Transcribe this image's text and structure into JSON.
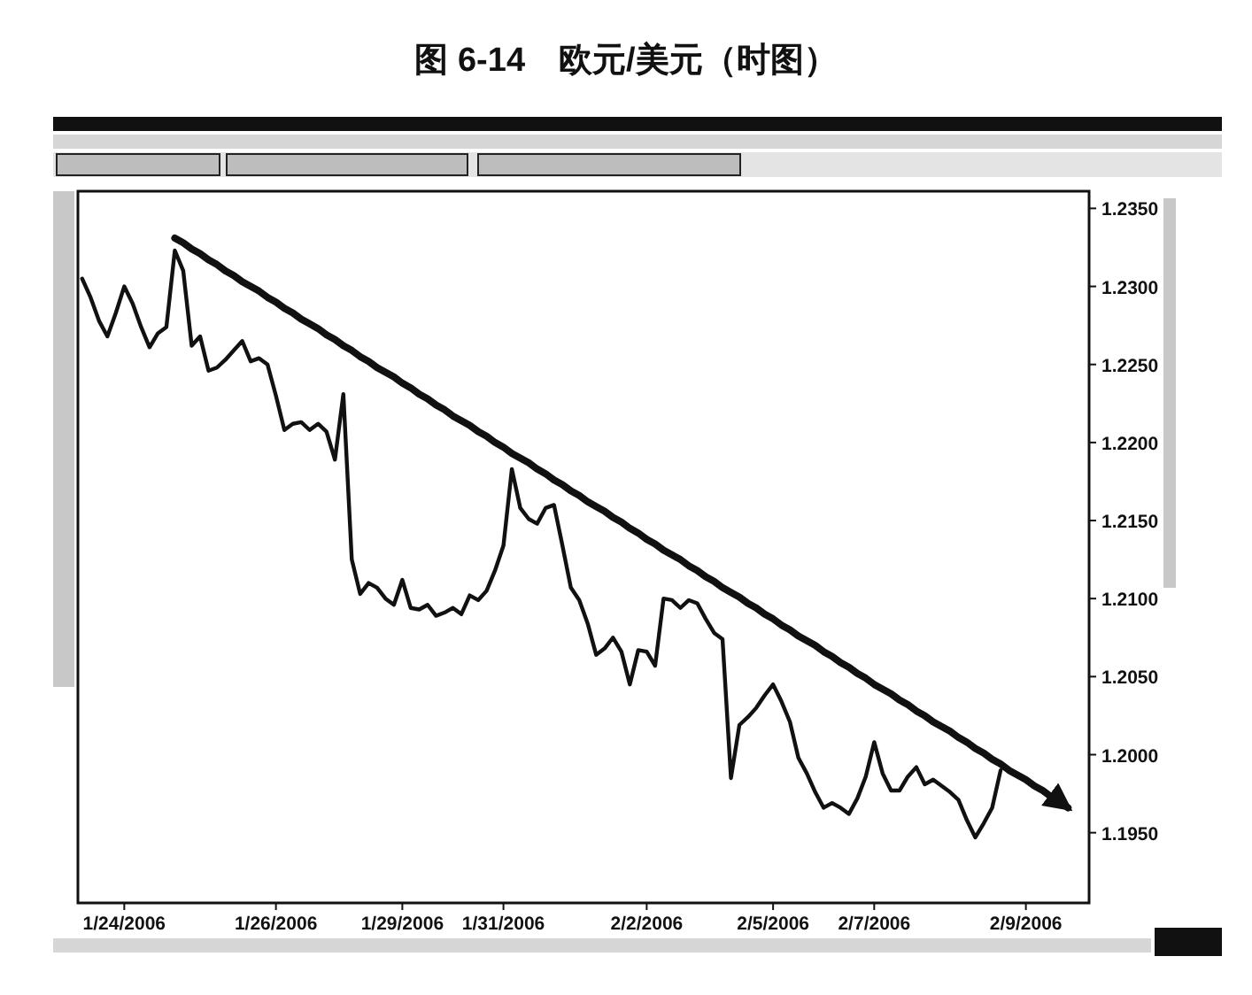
{
  "chart_data": {
    "type": "line",
    "title": "图 6-14　欧元/美元（时图）",
    "categories": [
      null,
      null,
      null,
      null,
      null,
      "1/24/2006",
      null,
      null,
      null,
      null,
      null,
      null,
      null,
      null,
      null,
      null,
      null,
      null,
      null,
      null,
      null,
      null,
      null,
      "1/26/2006",
      null,
      null,
      null,
      null,
      null,
      null,
      null,
      null,
      null,
      null,
      null,
      null,
      null,
      null,
      "1/29/2006",
      null,
      null,
      null,
      null,
      null,
      null,
      null,
      null,
      null,
      null,
      null,
      "1/31/2006",
      null,
      null,
      null,
      null,
      null,
      null,
      null,
      null,
      null,
      null,
      null,
      null,
      null,
      null,
      null,
      null,
      "2/2/2006",
      null,
      null,
      null,
      null,
      null,
      null,
      null,
      null,
      null,
      null,
      null,
      null,
      null,
      null,
      "2/5/2006",
      null,
      null,
      null,
      null,
      null,
      null,
      null,
      null,
      null,
      null,
      null,
      "2/7/2006",
      null,
      null,
      null,
      null,
      null,
      null,
      null,
      null,
      null,
      null,
      null,
      null,
      null,
      null,
      null,
      null,
      null,
      "2/9/2006",
      null,
      null,
      null,
      null,
      null,
      null,
      null
    ],
    "ylim": [
      1.1905,
      1.2361
    ],
    "yticks": [
      {
        "value": 1.195,
        "label": "1.1950"
      },
      {
        "value": 1.2,
        "label": "1.2000"
      },
      {
        "value": 1.205,
        "label": "1.2050"
      },
      {
        "value": 1.21,
        "label": "1.2100"
      },
      {
        "value": 1.215,
        "label": "1.2150"
      },
      {
        "value": 1.22,
        "label": "1.2200"
      },
      {
        "value": 1.225,
        "label": "1.2250"
      },
      {
        "value": 1.23,
        "label": "1.2300"
      },
      {
        "value": 1.235,
        "label": "1.2350"
      }
    ],
    "series": [
      {
        "color": "#111111",
        "values": [
          1.2305,
          1.2293,
          1.2278,
          1.2268,
          1.2283,
          1.23,
          1.2289,
          1.2274,
          1.2261,
          1.227,
          1.2274,
          1.2323,
          1.231,
          1.2262,
          1.2268,
          1.2246,
          1.2248,
          1.2253,
          1.2259,
          1.2265,
          1.2252,
          1.2254,
          1.225,
          1.223,
          1.2208,
          1.2212,
          1.2213,
          1.2208,
          1.2212,
          1.2207,
          1.2189,
          1.2231,
          1.2125,
          1.2103,
          1.211,
          1.2107,
          1.21,
          1.2096,
          1.2112,
          1.2094,
          1.2093,
          1.2096,
          1.2089,
          1.2091,
          1.2094,
          1.209,
          1.2102,
          1.2099,
          1.2105,
          1.2118,
          1.2134,
          1.2183,
          1.2158,
          1.2151,
          1.2148,
          1.2158,
          1.216,
          1.2134,
          1.2107,
          1.2099,
          1.2084,
          1.2064,
          1.2068,
          1.2075,
          1.2066,
          1.2045,
          1.2067,
          1.2066,
          1.2057,
          1.21,
          1.2099,
          1.2094,
          1.2099,
          1.2097,
          1.2087,
          1.2078,
          1.2074,
          1.1985,
          1.2019,
          1.2024,
          1.203,
          1.2038,
          1.2045,
          1.2034,
          1.2021,
          1.1998,
          1.1988,
          1.1976,
          1.1966,
          1.1969,
          1.1966,
          1.1962,
          1.1972,
          1.1986,
          1.2008,
          1.1988,
          1.1977,
          1.1977,
          1.1986,
          1.1992,
          1.1981,
          1.1984,
          1.198,
          1.1976,
          1.1971,
          1.1958,
          1.1947,
          1.1956,
          1.1966,
          1.199,
          null,
          null,
          null,
          null,
          null,
          null,
          null,
          null,
          null,
          null
        ]
      },
      {
        "type": "line",
        "color": "#111111",
        "values": [
          null,
          null,
          null,
          null,
          null,
          null,
          null,
          null,
          null,
          null,
          null,
          1.2331,
          1.2328,
          1.2324,
          1.2321,
          1.2317,
          1.2314,
          1.231,
          1.2307,
          1.2303,
          1.23,
          1.2297,
          1.2293,
          1.229,
          1.2286,
          1.2283,
          1.2279,
          1.2276,
          1.2273,
          1.2269,
          1.2266,
          1.2262,
          1.2259,
          1.2255,
          1.2252,
          1.2248,
          1.2245,
          1.2242,
          1.2238,
          1.2235,
          1.2231,
          1.2228,
          1.2224,
          1.2221,
          1.2217,
          1.2214,
          1.2211,
          1.2207,
          1.2204,
          1.22,
          1.2197,
          1.2193,
          1.219,
          1.2187,
          1.2183,
          1.218,
          1.2176,
          1.2173,
          1.2169,
          1.2166,
          1.2162,
          1.2159,
          1.2156,
          1.2152,
          1.2149,
          1.2145,
          1.2142,
          1.2138,
          1.2135,
          1.2131,
          1.2128,
          1.2125,
          1.2121,
          1.2118,
          1.2114,
          1.2111,
          1.2107,
          1.2104,
          1.2101,
          1.2097,
          1.2094,
          1.209,
          1.2087,
          1.2083,
          1.208,
          1.2076,
          1.2073,
          1.207,
          1.2066,
          1.2063,
          1.2059,
          1.2056,
          1.2052,
          1.2049,
          1.2045,
          1.2042,
          1.2039,
          1.2035,
          1.2032,
          1.2028,
          1.2025,
          1.2021,
          1.2018,
          1.2015,
          1.2011,
          1.2008,
          1.2004,
          1.2001,
          1.1997,
          1.1994,
          1.199,
          1.1987,
          1.1984,
          1.198,
          1.1977,
          1.1973,
          1.197,
          1.1966,
          null,
          null
        ]
      }
    ]
  }
}
